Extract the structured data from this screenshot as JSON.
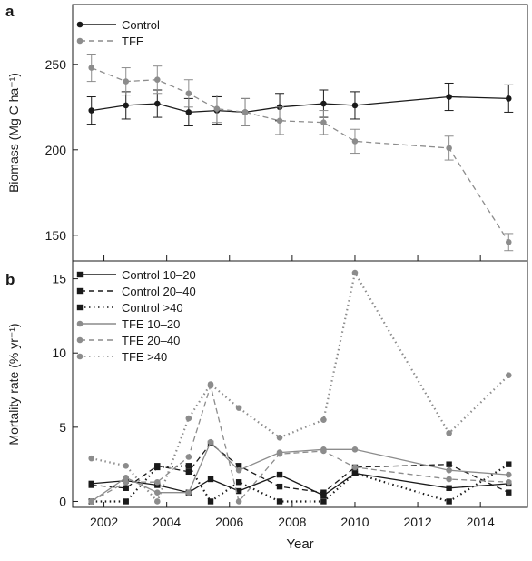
{
  "chart_data": [
    {
      "panel": "a",
      "type": "line",
      "ylabel": "Biomass (Mg C ha⁻¹)",
      "xlim": [
        2001,
        2015.5
      ],
      "ylim": [
        135,
        285
      ],
      "yticks": [
        150,
        200,
        250
      ],
      "legend": "top-left",
      "series": [
        {
          "name": "Control",
          "color": "#1a1a1a",
          "marker": "circle",
          "dash": "solid",
          "points": [
            {
              "x": 2001.6,
              "y": 223,
              "err": 8
            },
            {
              "x": 2002.7,
              "y": 226,
              "err": 8
            },
            {
              "x": 2003.7,
              "y": 227,
              "err": 8
            },
            {
              "x": 2004.7,
              "y": 222,
              "err": 8
            },
            {
              "x": 2005.6,
              "y": 223,
              "err": 8
            },
            {
              "x": 2006.5,
              "y": 222,
              "err": 8
            },
            {
              "x": 2007.6,
              "y": 225,
              "err": 8
            },
            {
              "x": 2009.0,
              "y": 227,
              "err": 8
            },
            {
              "x": 2010.0,
              "y": 226,
              "err": 8
            },
            {
              "x": 2013.0,
              "y": 231,
              "err": 8
            },
            {
              "x": 2014.9,
              "y": 230,
              "err": 8
            }
          ]
        },
        {
          "name": "TFE",
          "color": "#8c8c8c",
          "marker": "circle",
          "dash": "dashed",
          "points": [
            {
              "x": 2001.6,
              "y": 248,
              "err": 8
            },
            {
              "x": 2002.7,
              "y": 240,
              "err": 8
            },
            {
              "x": 2003.7,
              "y": 241,
              "err": 8
            },
            {
              "x": 2004.7,
              "y": 233,
              "err": 8
            },
            {
              "x": 2005.6,
              "y": 224,
              "err": 8
            },
            {
              "x": 2006.5,
              "y": 222,
              "err": 8
            },
            {
              "x": 2007.6,
              "y": 217,
              "err": 8
            },
            {
              "x": 2009.0,
              "y": 216,
              "err": 7
            },
            {
              "x": 2010.0,
              "y": 205,
              "err": 7
            },
            {
              "x": 2013.0,
              "y": 201,
              "err": 7
            },
            {
              "x": 2014.9,
              "y": 146,
              "err": 5
            }
          ]
        }
      ]
    },
    {
      "panel": "b",
      "type": "line",
      "xlabel": "Year",
      "ylabel": "Mortality rate (% yr⁻¹)",
      "xlim": [
        2001,
        2015.5
      ],
      "ylim": [
        -0.4,
        16.2
      ],
      "xticks": [
        2002,
        2004,
        2006,
        2008,
        2010,
        2012,
        2014
      ],
      "yticks": [
        0,
        5,
        10,
        15
      ],
      "legend": "top-left",
      "x": [
        2001.6,
        2002.7,
        2003.7,
        2004.7,
        2005.4,
        2006.3,
        2007.6,
        2009.0,
        2010.0,
        2013.0,
        2014.9
      ],
      "series": [
        {
          "name": "Control 10–20",
          "color": "#1a1a1a",
          "marker": "square",
          "dash": "solid",
          "values": [
            1.2,
            1.4,
            1.1,
            0.6,
            1.5,
            0.7,
            1.8,
            0.4,
            1.9,
            0.9,
            1.2
          ]
        },
        {
          "name": "Control 20–40",
          "color": "#1a1a1a",
          "marker": "square",
          "dash": "dashed",
          "values": [
            1.1,
            0.9,
            2.4,
            2.0,
            3.9,
            2.4,
            1.0,
            0.6,
            2.3,
            2.5,
            0.6
          ]
        },
        {
          "name": "Control >40",
          "color": "#1a1a1a",
          "marker": "square",
          "dash": "dotted",
          "values": [
            0.0,
            0.0,
            2.3,
            2.4,
            0.0,
            1.3,
            0.0,
            0.0,
            1.9,
            0.0,
            2.5
          ]
        },
        {
          "name": "TFE 10–20",
          "color": "#8c8c8c",
          "marker": "circle",
          "dash": "solid",
          "values": [
            0.0,
            1.6,
            0.6,
            0.6,
            4.0,
            2.1,
            3.3,
            3.5,
            3.5,
            2.1,
            1.8
          ]
        },
        {
          "name": "TFE 20–40",
          "color": "#8c8c8c",
          "marker": "circle",
          "dash": "dashed",
          "values": [
            0.0,
            1.3,
            1.3,
            3.0,
            7.8,
            0.0,
            3.2,
            3.4,
            2.3,
            1.5,
            1.3
          ]
        },
        {
          "name": "TFE >40",
          "color": "#8c8c8c",
          "marker": "circle",
          "dash": "dotted",
          "values": [
            2.9,
            2.4,
            0.0,
            5.6,
            7.9,
            6.3,
            4.3,
            5.5,
            15.4,
            4.6,
            8.5
          ]
        }
      ]
    }
  ]
}
